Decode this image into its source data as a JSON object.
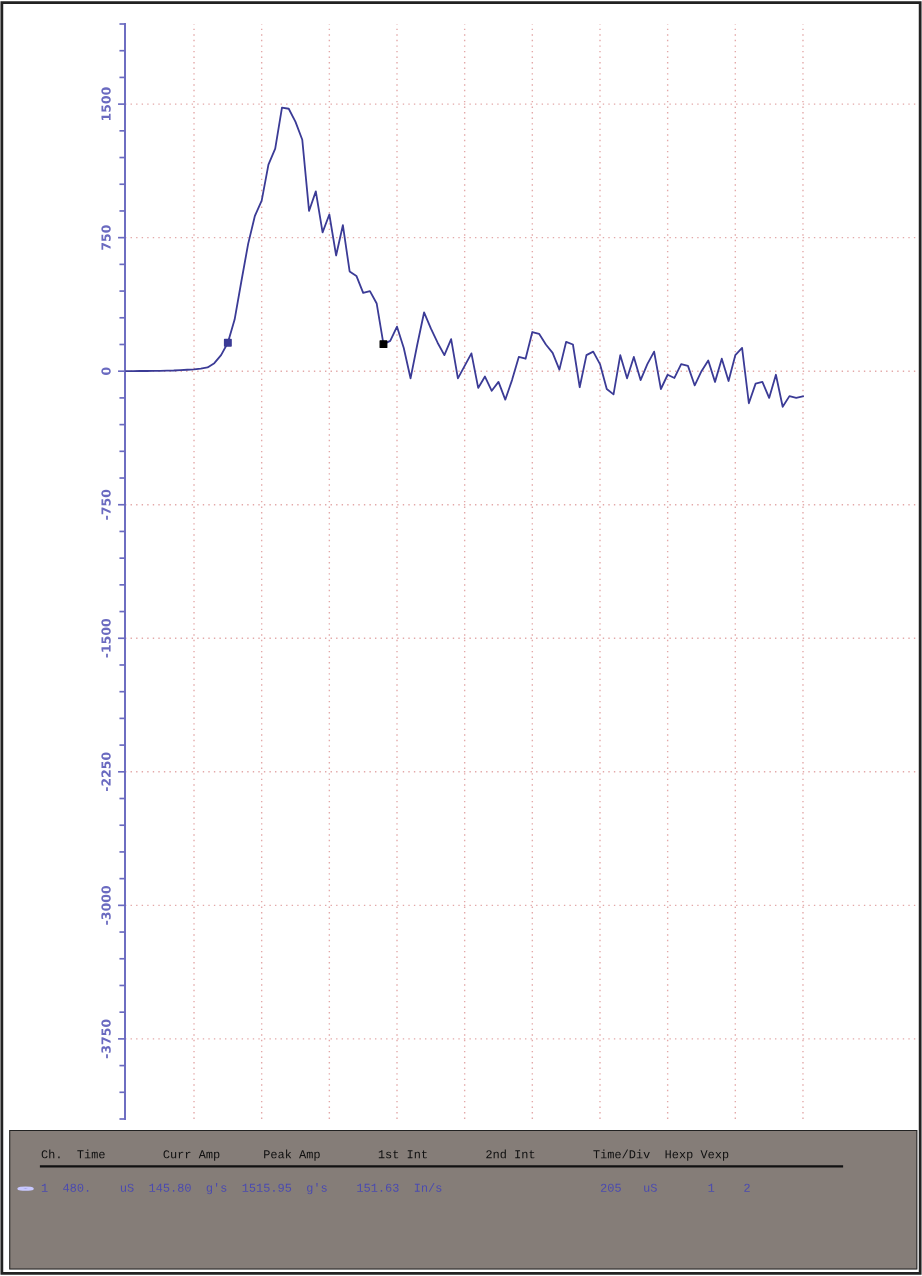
{
  "chart_data": {
    "type": "line",
    "categories": [
      null,
      null,
      null,
      null,
      null,
      null,
      null,
      null,
      null,
      null,
      null,
      null,
      null,
      null,
      null,
      null,
      null,
      null,
      null,
      null,
      null,
      null,
      null,
      null,
      null,
      null,
      null,
      null,
      null,
      null,
      null,
      null,
      null,
      null,
      null,
      null,
      null,
      null,
      null,
      null,
      null,
      null,
      null,
      null,
      null,
      null,
      null,
      null,
      null,
      null,
      null,
      null,
      null,
      null,
      null,
      null,
      null,
      null,
      null,
      null,
      null,
      null,
      null,
      null,
      null,
      null,
      null,
      null,
      null,
      null,
      null,
      null,
      null,
      null,
      null,
      null,
      null,
      null,
      null,
      null,
      null,
      null,
      null,
      null,
      null,
      null,
      null,
      null,
      null,
      null,
      null,
      null,
      null,
      null,
      null,
      null,
      null,
      null,
      null,
      null,
      null
    ],
    "ylim": [
      -4200,
      1950
    ],
    "yticks": [
      -3750,
      -3000,
      -2250,
      -1500,
      -750,
      0,
      750,
      1500
    ],
    "tick_labels": "y",
    "grid": true,
    "line_style": "solid",
    "marker": "none",
    "series": [
      {
        "color": "#3b3b96",
        "values": [
          0,
          0,
          1,
          1,
          2,
          2,
          3,
          4,
          6,
          8,
          10,
          15,
          21,
          45,
          90,
          160,
          290,
          505,
          715,
          873,
          958,
          1160,
          1250,
          1480,
          1474,
          1400,
          1300,
          900,
          1010,
          780,
          880,
          650,
          820,
          560,
          535,
          440,
          450,
          380,
          152,
          170,
          250,
          130,
          -40,
          150,
          330,
          240,
          160,
          90,
          180,
          -40,
          30,
          100,
          -94,
          -30,
          -110,
          -60,
          -160,
          -50,
          80,
          70,
          220,
          210,
          150,
          103,
          9,
          165,
          150,
          -90,
          90,
          110,
          40,
          -100,
          -130,
          90,
          -40,
          80,
          -50,
          40,
          110,
          -100,
          -20,
          -38,
          40,
          30,
          -80,
          0,
          60,
          -60,
          70,
          -55,
          90,
          131,
          -180,
          -70,
          -60,
          -150,
          -20,
          -200,
          -140,
          -150,
          -141
        ]
      }
    ],
    "annotations": [
      "Ch.  Time        Curr Amp      Peak Amp        1st Int        2nd Int        Time/Div  Hexp Vexp",
      "1  480.    uS  145.80  g's  1515.95  g's    151.63  In/s                      205   uS       1    2"
    ]
  }
}
